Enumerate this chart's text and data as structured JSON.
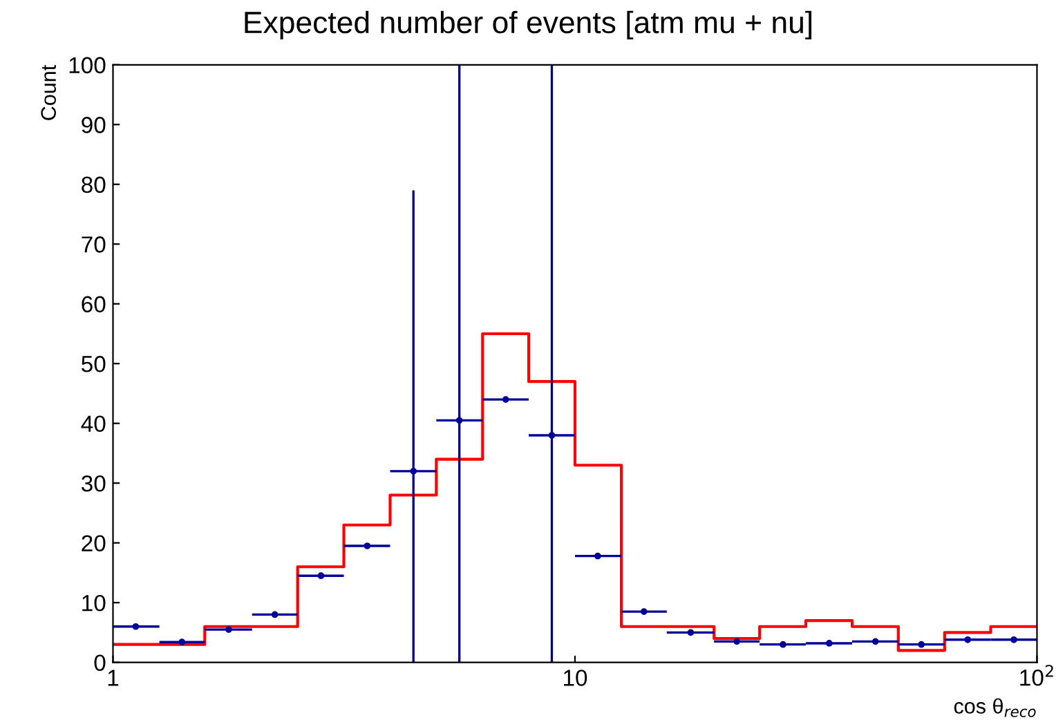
{
  "chart_data": {
    "type": "step",
    "title": "Expected number of events [atm mu + nu]",
    "xlabel": "cos θ$_{reco}$",
    "ylabel": "Count",
    "log": "x",
    "series": [
      {
        "color": "#ff0000",
        "x": [
          1,
          1.26,
          1.58,
          2,
          2.51,
          3.16,
          3.98,
          5.01,
          6.31,
          7.94,
          10,
          12.6,
          15.8,
          20,
          25.1,
          31.6,
          39.8,
          50.1,
          63.1,
          79.4,
          100
        ],
        "values": [
          3,
          3,
          6,
          6,
          16,
          23,
          28,
          34,
          55,
          47,
          33,
          6,
          6,
          4,
          6,
          7,
          6,
          2,
          5,
          6,
          6
        ]
      },
      {
        "type": "scatter",
        "marker": "circle",
        "color": "#000099",
        "x": [
          1.12,
          1.41,
          1.78,
          2.24,
          2.82,
          3.55,
          4.47,
          5.62,
          7.08,
          8.91,
          11.2,
          14.1,
          17.8,
          22.4,
          28.2,
          35.5,
          44.7,
          56.2,
          70.8,
          89.1
        ],
        "values": [
          6,
          3.4,
          5.5,
          8,
          14.5,
          19.5,
          32,
          40.5,
          44,
          38,
          17.8,
          8.5,
          5,
          3.5,
          3,
          3.2,
          3.5,
          3,
          3.8,
          3.8
        ],
        "errors": [
          null,
          null,
          null,
          null,
          null,
          null,
          [
            0,
            79
          ],
          [
            0,
            100
          ],
          null,
          [
            0,
            100
          ],
          null,
          null,
          null,
          null,
          null,
          null,
          null,
          null,
          null,
          null
        ],
        "xerrors": [
          [
            1,
            1.26
          ],
          [
            1.26,
            1.58
          ],
          [
            1.58,
            2
          ],
          [
            2,
            2.51
          ],
          [
            2.51,
            3.16
          ],
          [
            3.16,
            3.98
          ],
          [
            3.98,
            5.01
          ],
          [
            5.01,
            6.31
          ],
          [
            6.31,
            7.94
          ],
          [
            7.94,
            10
          ],
          [
            10,
            12.6
          ],
          [
            12.6,
            15.8
          ],
          [
            15.8,
            20
          ],
          [
            20,
            25.1
          ],
          [
            25.1,
            31.6
          ],
          [
            31.6,
            39.8
          ],
          [
            39.8,
            50.1
          ],
          [
            50.1,
            63.1
          ],
          [
            63.1,
            79.4
          ],
          [
            79.4,
            100
          ]
        ]
      }
    ],
    "xlim": [
      1,
      100
    ],
    "ylim": [
      0,
      100
    ],
    "xticks": [
      1,
      10,
      {
        "value": 100,
        "label": "10$^{2}$"
      }
    ],
    "yticks": [
      0,
      10,
      20,
      30,
      40,
      50,
      60,
      70,
      80,
      90,
      100
    ]
  }
}
